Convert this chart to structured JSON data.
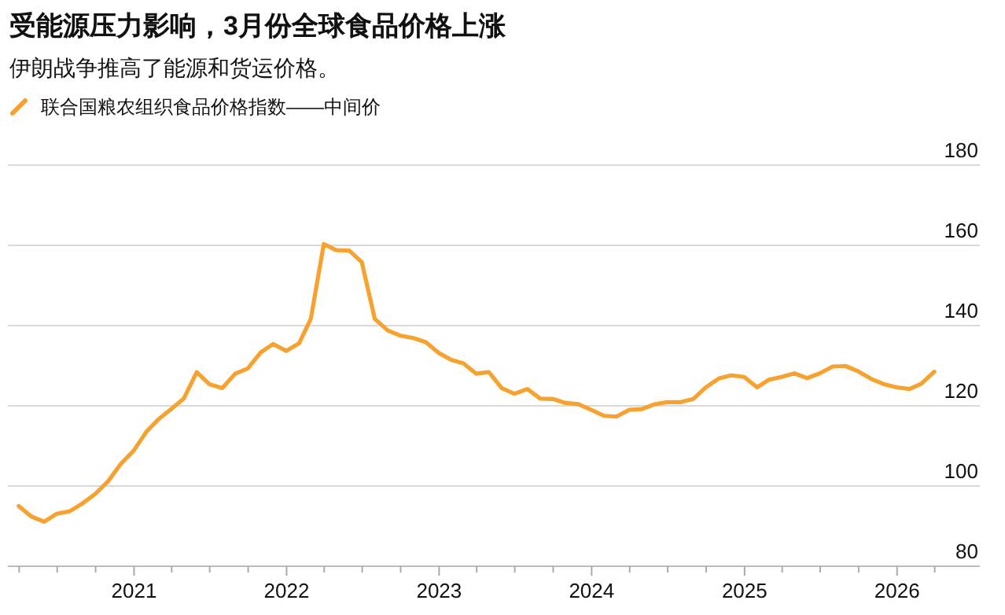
{
  "chart_data": {
    "type": "line",
    "title": "受能源压力影响，3月份全球食品价格上涨",
    "subtitle": "伊朗战争推高了能源和货运价格。",
    "x": [
      "2020-03-31",
      "2020-04-30",
      "2020-05-31",
      "2020-06-30",
      "2020-07-31",
      "2020-08-31",
      "2020-09-30",
      "2020-10-31",
      "2020-11-30",
      "2020-12-31",
      "2021-01-31",
      "2021-02-28",
      "2021-03-31",
      "2021-04-30",
      "2021-05-31",
      "2021-06-30",
      "2021-07-31",
      "2021-08-31",
      "2021-09-30",
      "2021-10-31",
      "2021-11-30",
      "2021-12-31",
      "2022-01-31",
      "2022-02-28",
      "2022-03-31",
      "2022-04-30",
      "2022-05-31",
      "2022-06-30",
      "2022-07-31",
      "2022-08-31",
      "2022-09-30",
      "2022-10-31",
      "2022-11-30",
      "2022-12-31",
      "2023-01-31",
      "2023-02-28",
      "2023-03-31",
      "2023-04-30",
      "2023-05-31",
      "2023-06-30",
      "2023-07-31",
      "2023-08-31",
      "2023-09-30",
      "2023-10-31",
      "2023-11-30",
      "2023-12-31",
      "2024-01-31",
      "2024-02-29",
      "2024-03-31",
      "2024-04-30",
      "2024-05-31",
      "2024-06-30",
      "2024-07-31",
      "2024-08-31",
      "2024-09-30",
      "2024-10-31",
      "2024-11-30",
      "2024-12-31",
      "2025-01-31",
      "2025-02-28",
      "2025-03-31",
      "2025-04-30",
      "2025-05-31",
      "2025-06-30",
      "2025-07-31",
      "2025-08-31",
      "2025-09-30",
      "2025-10-31",
      "2025-11-30",
      "2025-12-31",
      "2026-01-31",
      "2026-02-28",
      "2026-03-31"
    ],
    "series": [
      {
        "name": "联合国粮农组织食品价格指数——中间价",
        "color": "#f7a12f",
        "values": [
          95.0,
          92.4,
          91.1,
          93.1,
          93.7,
          95.7,
          98.0,
          101.2,
          105.5,
          108.8,
          113.6,
          116.6,
          119.2,
          121.8,
          128.4,
          125.4,
          124.4,
          128.0,
          129.3,
          133.3,
          135.4,
          133.7,
          135.6,
          141.7,
          160.3,
          158.8,
          158.7,
          155.8,
          141.7,
          138.8,
          137.5,
          136.9,
          135.9,
          133.2,
          131.4,
          130.6,
          128.0,
          128.4,
          124.4,
          123.0,
          124.2,
          121.8,
          121.7,
          120.7,
          120.4,
          119.0,
          117.5,
          117.3,
          119.0,
          119.2,
          120.4,
          120.9,
          120.9,
          121.7,
          124.6,
          126.8,
          127.6,
          127.2,
          124.6,
          126.5,
          127.2,
          128.1,
          126.9,
          128.1,
          129.8,
          129.9,
          128.6,
          126.7,
          125.4,
          124.6,
          124.2,
          125.5,
          128.5
        ]
      }
    ],
    "xlim": [
      "2020-03-05",
      "2026-07-18"
    ],
    "xticks": [
      {
        "value": "2020-04-01",
        "label": null
      },
      {
        "value": "2020-07-01",
        "label": null
      },
      {
        "value": "2020-10-01",
        "label": null
      },
      {
        "value": "2021-01-01",
        "label": "2021"
      },
      {
        "value": "2021-04-01",
        "label": null
      },
      {
        "value": "2021-07-01",
        "label": null
      },
      {
        "value": "2021-10-01",
        "label": null
      },
      {
        "value": "2022-01-01",
        "label": "2022"
      },
      {
        "value": "2022-04-01",
        "label": null
      },
      {
        "value": "2022-07-01",
        "label": null
      },
      {
        "value": "2022-10-01",
        "label": null
      },
      {
        "value": "2023-01-01",
        "label": "2023"
      },
      {
        "value": "2023-04-01",
        "label": null
      },
      {
        "value": "2023-07-01",
        "label": null
      },
      {
        "value": "2023-10-01",
        "label": null
      },
      {
        "value": "2024-01-01",
        "label": "2024"
      },
      {
        "value": "2024-04-01",
        "label": null
      },
      {
        "value": "2024-07-01",
        "label": null
      },
      {
        "value": "2024-10-01",
        "label": null
      },
      {
        "value": "2025-01-01",
        "label": "2025"
      },
      {
        "value": "2025-04-01",
        "label": null
      },
      {
        "value": "2025-07-01",
        "label": null
      },
      {
        "value": "2025-10-01",
        "label": null
      },
      {
        "value": "2026-01-01",
        "label": "2026"
      },
      {
        "value": "2026-04-01",
        "label": null
      }
    ],
    "ylim": [
      80,
      180
    ],
    "yticks": [
      80,
      100,
      120,
      140,
      160,
      180
    ],
    "grid": "y",
    "legend": "top left",
    "line_style": "solid",
    "marker": "none"
  }
}
